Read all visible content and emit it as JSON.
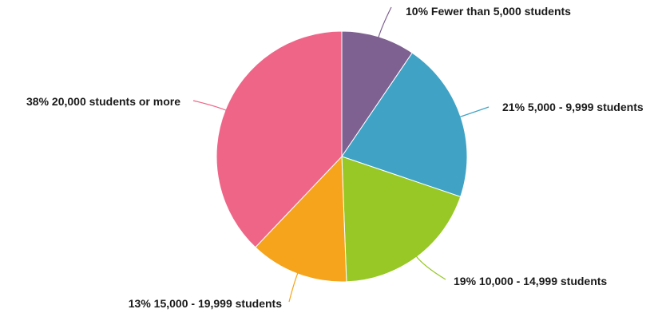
{
  "chart_data": {
    "type": "pie",
    "title": "",
    "slices": [
      {
        "label": "Fewer than 5,000 students",
        "percent_text": "10%",
        "value": 9.5,
        "color": "#7e6190"
      },
      {
        "label": "5,000 - 9,999 students",
        "percent_text": "21%",
        "value": 20.7,
        "color": "#40a3c5"
      },
      {
        "label": "10,000 - 14,999 students",
        "percent_text": "19%",
        "value": 19.2,
        "color": "#97c825"
      },
      {
        "label": "15,000 - 19,999 students",
        "percent_text": "13%",
        "value": 12.7,
        "color": "#f5a41c"
      },
      {
        "label": "20,000 students or more",
        "percent_text": "38%",
        "value": 37.9,
        "color": "#ef6588"
      }
    ],
    "start_direction": "top",
    "direction": "clockwise",
    "label_format": "{percent} {label}",
    "legend": "none"
  }
}
